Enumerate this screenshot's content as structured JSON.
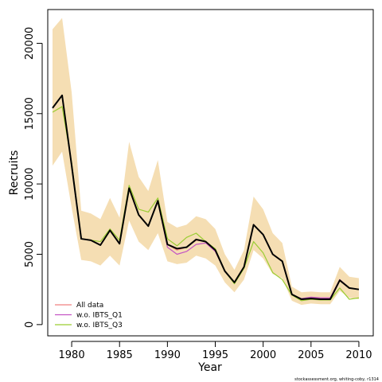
{
  "chart_data": {
    "type": "line",
    "xlabel": "Year",
    "ylabel": "Recruits",
    "xlim": [
      1977.5,
      2011.5
    ],
    "ylim": [
      -800,
      22400
    ],
    "x_ticks": [
      1980,
      1985,
      1990,
      1995,
      2000,
      2005,
      2010
    ],
    "y_ticks": [
      0,
      5000,
      10000,
      15000,
      20000
    ],
    "x": [
      1978,
      1979,
      1980,
      1981,
      1982,
      1983,
      1984,
      1985,
      1986,
      1987,
      1988,
      1989,
      1990,
      1991,
      1992,
      1993,
      1994,
      1995,
      1996,
      1997,
      1998,
      1999,
      2000,
      2001,
      2002,
      2003,
      2004,
      2005,
      2006,
      2007,
      2008,
      2009,
      2010
    ],
    "band": {
      "color": "#f5deb3",
      "upper": [
        21000,
        21800,
        16500,
        8100,
        7900,
        7500,
        9000,
        7600,
        13000,
        10500,
        9500,
        11700,
        7300,
        6900,
        7100,
        7700,
        7500,
        6800,
        5000,
        3900,
        5300,
        9100,
        8200,
        6500,
        5800,
        2700,
        2300,
        2350,
        2300,
        2300,
        4100,
        3400,
        3300
      ],
      "lower": [
        11300,
        12300,
        8300,
        4600,
        4500,
        4200,
        4900,
        4200,
        7400,
        5900,
        5300,
        6500,
        4500,
        4300,
        4400,
        4900,
        4700,
        4200,
        3000,
        2300,
        3200,
        5300,
        4700,
        3600,
        3300,
        1700,
        1400,
        1500,
        1450,
        1450,
        2400,
        1900,
        1800
      ]
    },
    "series": [
      {
        "name": "All data",
        "color": "#f08080",
        "width": 1.2,
        "values": [
          15400,
          16300,
          11300,
          6100,
          6000,
          5650,
          6700,
          5750,
          9700,
          7800,
          7000,
          8800,
          5700,
          5300,
          5500,
          6000,
          5900,
          5300,
          3800,
          3000,
          4100,
          7100,
          6400,
          5000,
          4500,
          2100,
          1800,
          1900,
          1850,
          1850,
          3200,
          2600,
          2500
        ]
      },
      {
        "name": "w.o. IBTS_Q1",
        "color": "#c455c4",
        "width": 1.2,
        "values": [
          15400,
          16300,
          11300,
          6100,
          6000,
          5650,
          6700,
          5750,
          9700,
          7800,
          7000,
          8800,
          5500,
          5000,
          5200,
          5700,
          5800,
          5200,
          3800,
          3000,
          4100,
          7100,
          6400,
          5000,
          4500,
          2100,
          1850,
          1950,
          1900,
          1900,
          3200,
          2600,
          2500
        ]
      },
      {
        "name": "w.o. IBTS_Q3",
        "color": "#9acd32",
        "width": 1.2,
        "values": [
          15100,
          15500,
          11500,
          6100,
          6000,
          5900,
          6800,
          6000,
          9900,
          8200,
          8000,
          9000,
          6100,
          5600,
          6200,
          6500,
          5900,
          5400,
          3800,
          2900,
          4000,
          5900,
          5100,
          3700,
          3200,
          2100,
          1700,
          1800,
          1750,
          1750,
          2600,
          1800,
          1900
        ]
      },
      {
        "name": "",
        "color": "#000000",
        "width": 2.0,
        "values": [
          15400,
          16300,
          11300,
          6100,
          6000,
          5650,
          6700,
          5750,
          9700,
          7800,
          7000,
          8800,
          5700,
          5400,
          5500,
          6050,
          5900,
          5300,
          3800,
          3000,
          4100,
          7100,
          6400,
          5000,
          4500,
          2150,
          1800,
          1850,
          1800,
          1800,
          3150,
          2600,
          2500
        ]
      }
    ],
    "legend": {
      "position": "bottom-left",
      "entries": [
        {
          "label": "All data",
          "color": "#f08080"
        },
        {
          "label": "w.o. IBTS_Q1",
          "color": "#c455c4"
        },
        {
          "label": "w.o. IBTS_Q3",
          "color": "#9acd32"
        }
      ]
    },
    "footnote": "stockassessment.org, whiting-coby, r1314"
  }
}
